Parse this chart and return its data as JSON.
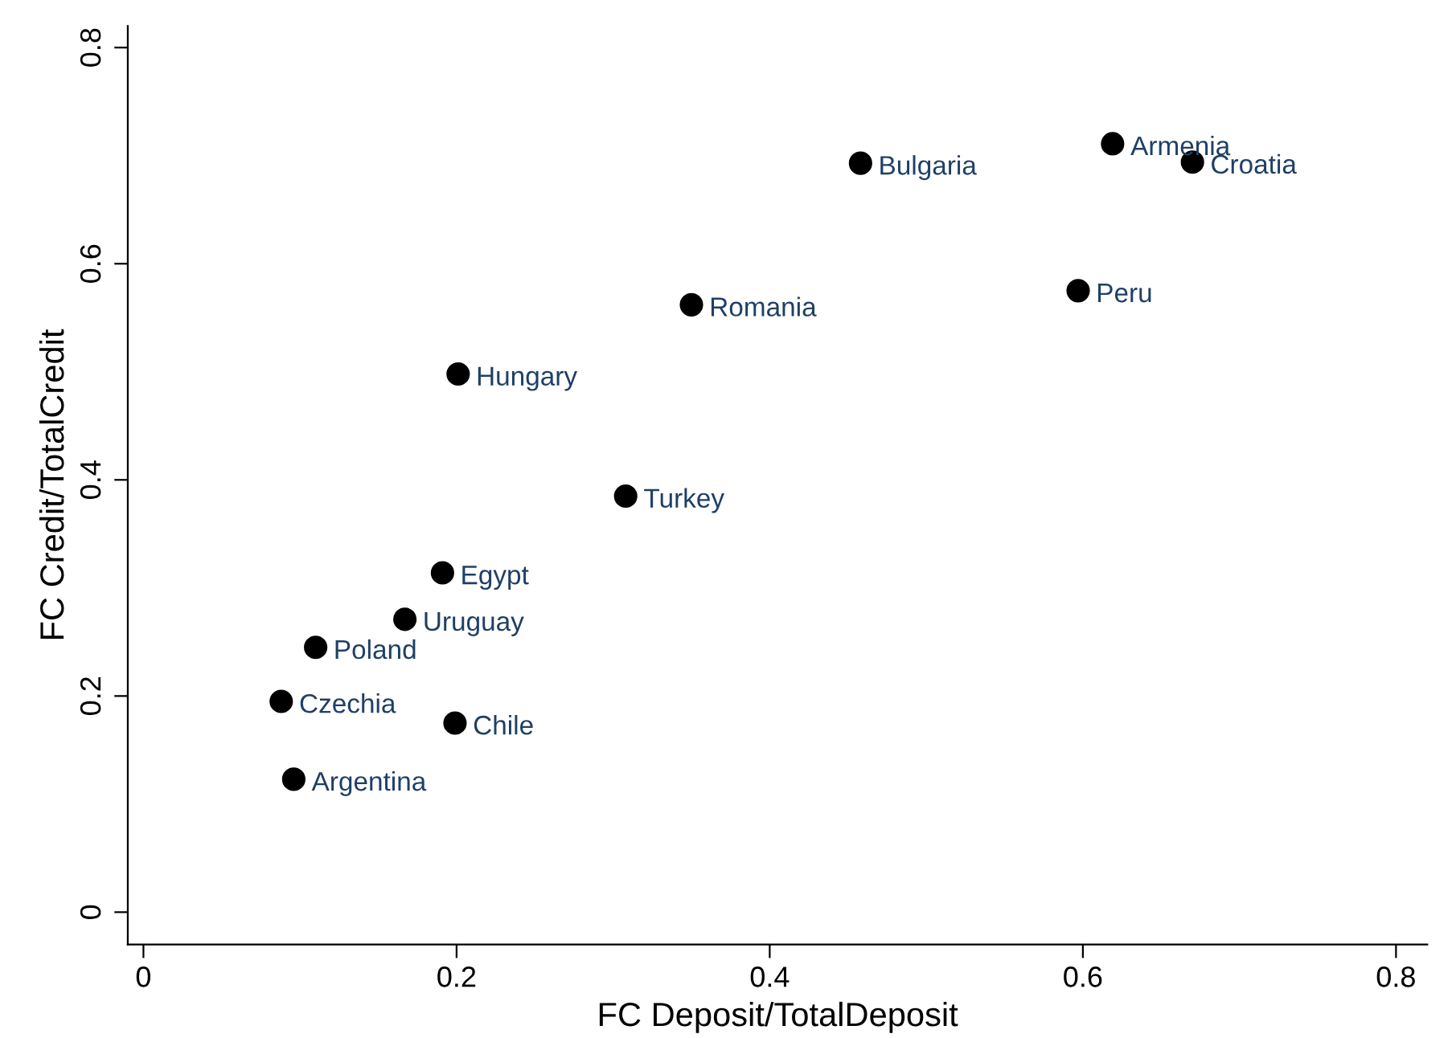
{
  "chart_data": {
    "type": "scatter",
    "xlabel": "FC Deposit/TotalDeposit",
    "ylabel": "FC Credit/TotalCredit",
    "xlim": [
      -0.01,
      0.82
    ],
    "ylim": [
      -0.03,
      0.82
    ],
    "xticks": [
      0,
      0.2,
      0.4,
      0.6,
      0.8
    ],
    "yticks": [
      0,
      0.2,
      0.4,
      0.6,
      0.8
    ],
    "grid": false,
    "legend": false,
    "marker": "circle",
    "series": [
      {
        "color": "#000000",
        "x": [
          0.619,
          0.67,
          0.458,
          0.597,
          0.35,
          0.201,
          0.308,
          0.191,
          0.167,
          0.11,
          0.088,
          0.199,
          0.096
        ],
        "values": [
          0.711,
          0.694,
          0.693,
          0.575,
          0.562,
          0.498,
          0.385,
          0.314,
          0.271,
          0.245,
          0.195,
          0.175,
          0.123
        ]
      }
    ],
    "annotations": [
      {
        "text": "Armenia",
        "x": 0.619,
        "y": 0.711
      },
      {
        "text": "Croatia",
        "x": 0.67,
        "y": 0.694
      },
      {
        "text": "Bulgaria",
        "x": 0.458,
        "y": 0.693
      },
      {
        "text": "Peru",
        "x": 0.597,
        "y": 0.575
      },
      {
        "text": "Romania",
        "x": 0.35,
        "y": 0.562
      },
      {
        "text": "Hungary",
        "x": 0.201,
        "y": 0.498
      },
      {
        "text": "Turkey",
        "x": 0.308,
        "y": 0.385
      },
      {
        "text": "Egypt",
        "x": 0.191,
        "y": 0.314
      },
      {
        "text": "Uruguay",
        "x": 0.167,
        "y": 0.271
      },
      {
        "text": "Poland",
        "x": 0.11,
        "y": 0.245
      },
      {
        "text": "Czechia",
        "x": 0.088,
        "y": 0.195
      },
      {
        "text": "Chile",
        "x": 0.199,
        "y": 0.175
      },
      {
        "text": "Argentina",
        "x": 0.096,
        "y": 0.123
      }
    ]
  }
}
